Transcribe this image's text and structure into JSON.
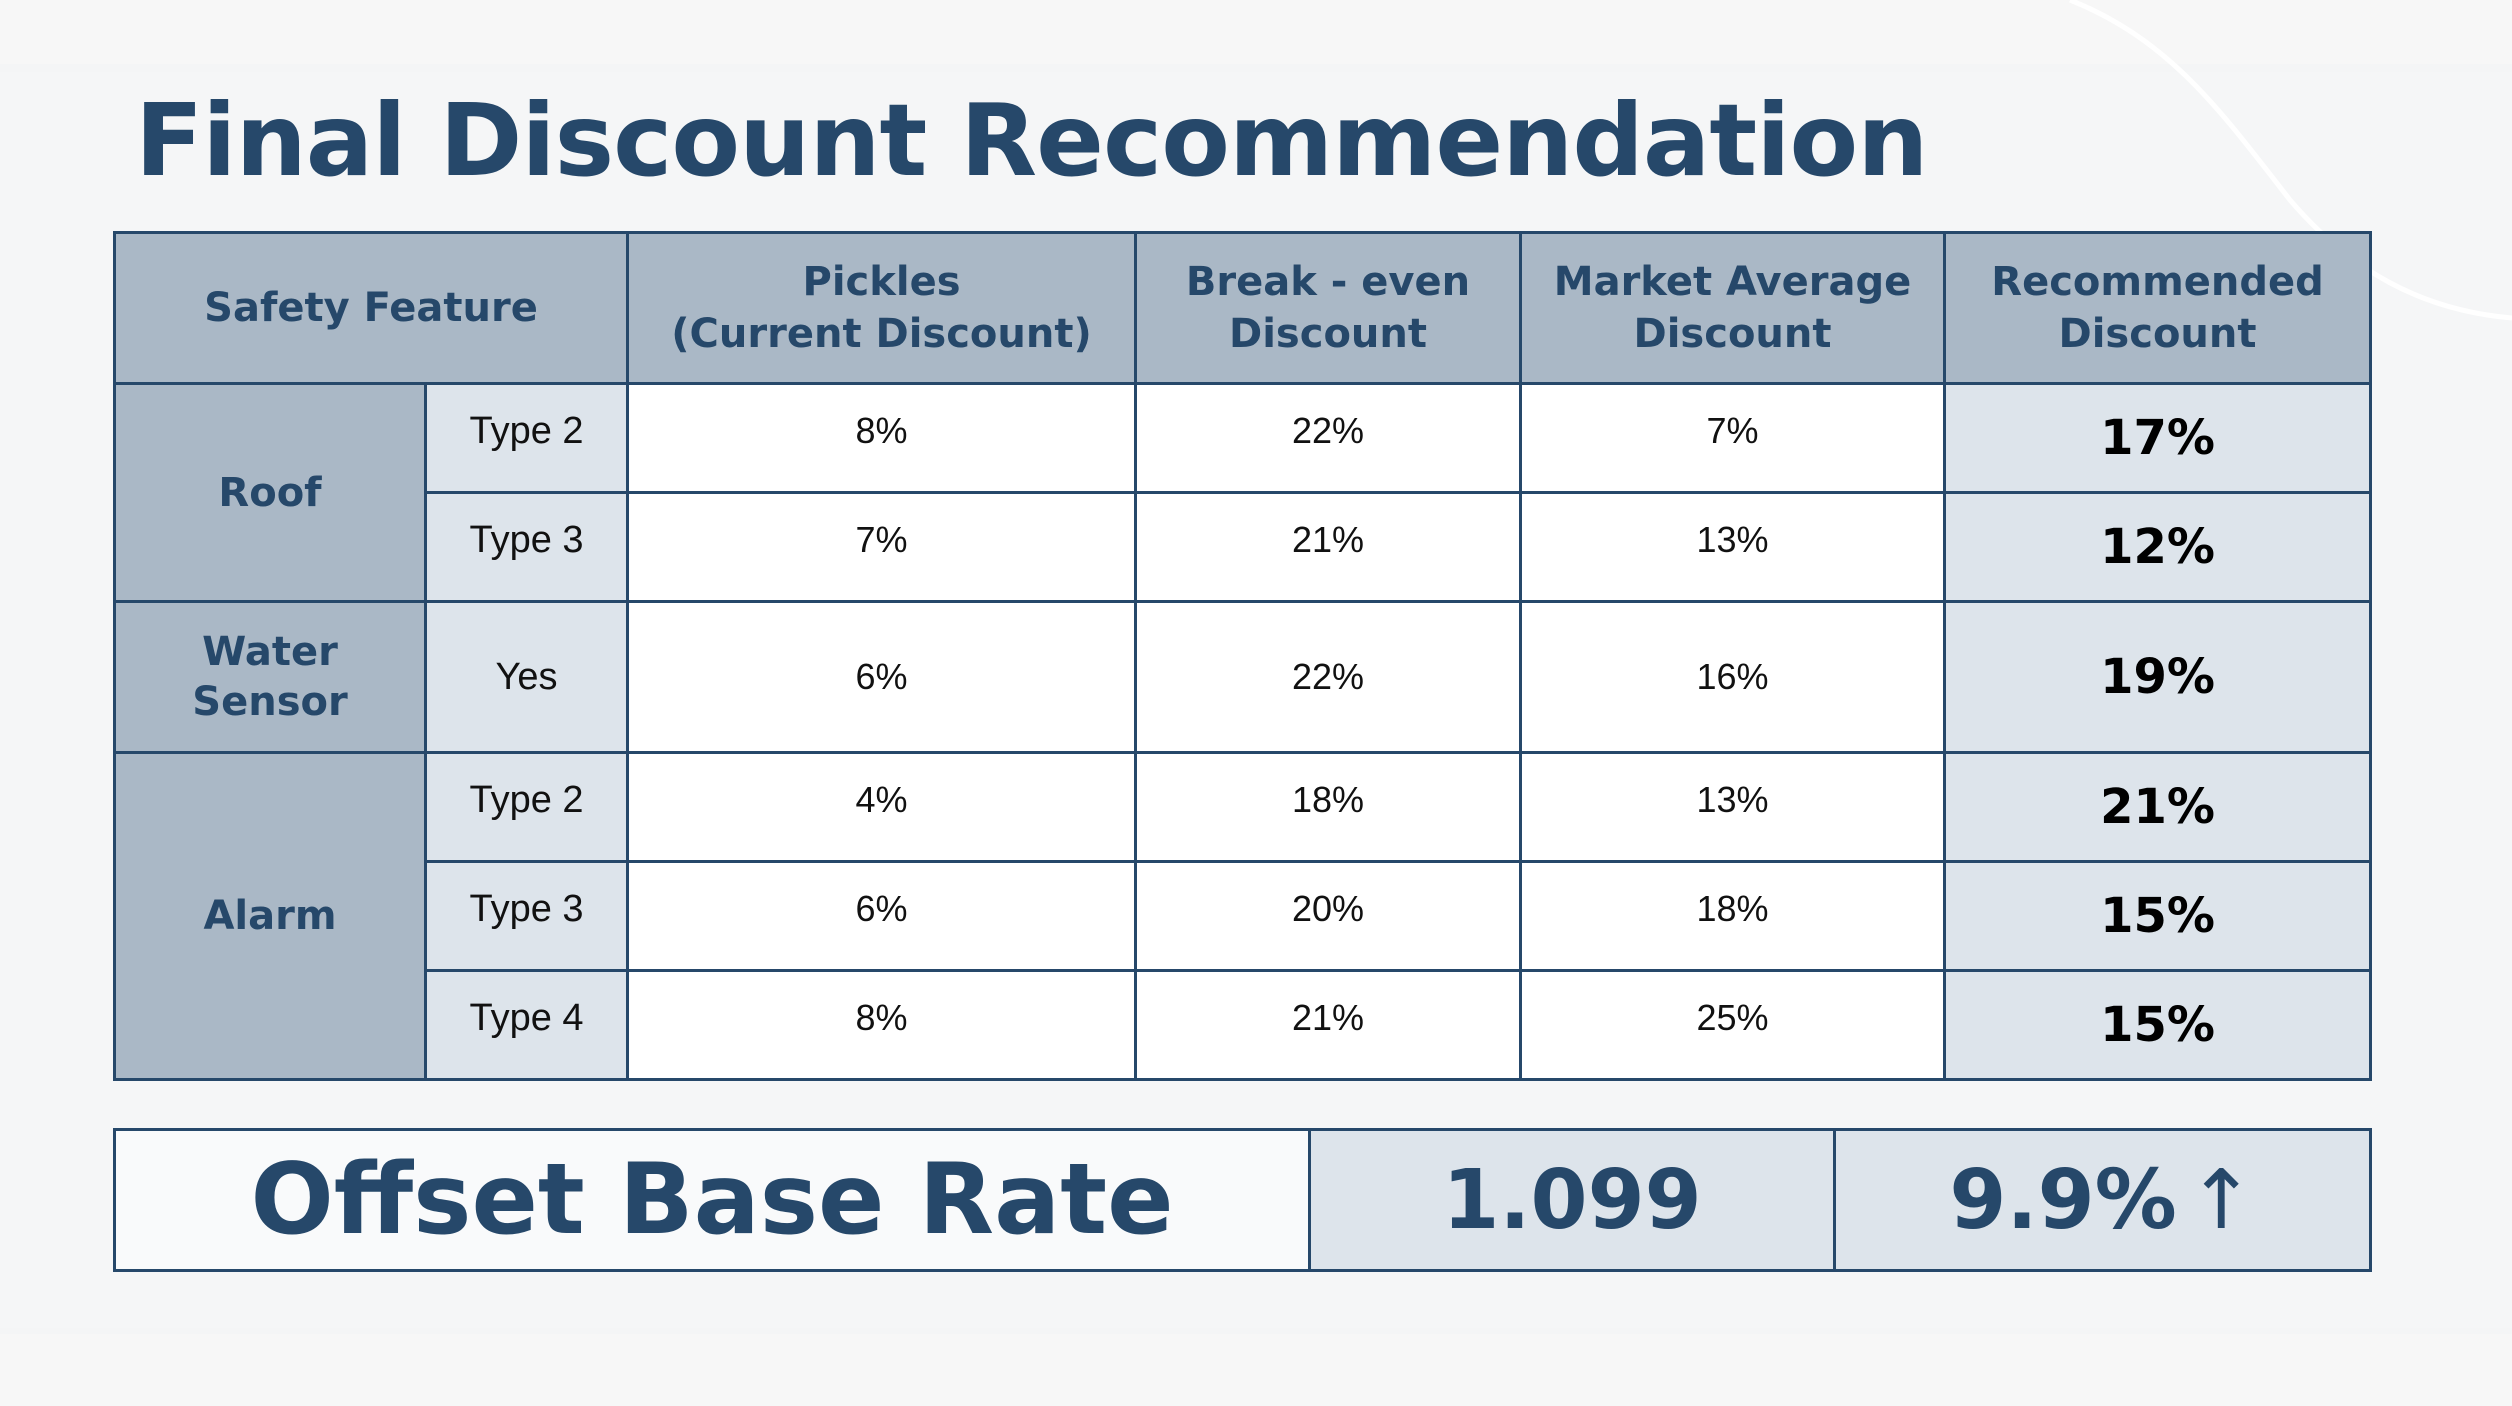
{
  "title": "Final Discount Recommendation",
  "table": {
    "headers": {
      "safety_feature": "Safety Feature",
      "pickles": [
        "Pickles",
        "(Current Discount)"
      ],
      "break_even": [
        "Break - even",
        "Discount"
      ],
      "market_average": [
        "Market Average",
        "Discount"
      ],
      "recommended": [
        "Recommended",
        "Discount"
      ]
    },
    "groups": [
      {
        "name": "Roof",
        "rows": [
          {
            "type": "Type 2",
            "pickles": "8%",
            "break_even": "22%",
            "market_average": "7%",
            "recommended": "17%"
          },
          {
            "type": "Type 3",
            "pickles": "7%",
            "break_even": "21%",
            "market_average": "13%",
            "recommended": "12%"
          }
        ]
      },
      {
        "name": "Water Sensor",
        "rows": [
          {
            "type": "Yes",
            "pickles": "6%",
            "break_even": "22%",
            "market_average": "16%",
            "recommended": "19%"
          }
        ]
      },
      {
        "name": "Alarm",
        "rows": [
          {
            "type": "Type 2",
            "pickles": "4%",
            "break_even": "18%",
            "market_average": "13%",
            "recommended": "21%"
          },
          {
            "type": "Type 3",
            "pickles": "6%",
            "break_even": "20%",
            "market_average": "18%",
            "recommended": "15%"
          },
          {
            "type": "Type 4",
            "pickles": "8%",
            "break_even": "21%",
            "market_average": "25%",
            "recommended": "15%"
          }
        ]
      }
    ]
  },
  "offset": {
    "label": "Offset Base Rate",
    "value": "1.099",
    "change": "9.9%",
    "arrow": "↑"
  },
  "colors": {
    "primary": "#26486a",
    "header_bg": "#aab8c6",
    "light_cell_bg": "#dde4eb",
    "recommended_header": "#e03a2a"
  }
}
